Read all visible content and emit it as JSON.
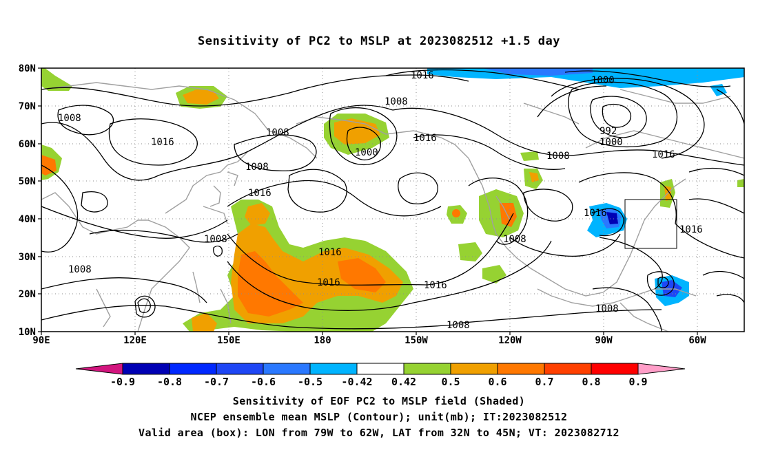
{
  "title": "Sensitivity of PC2 to MSLP at 2023082512 +1.5 day",
  "axes": {
    "lat_labels": [
      "80N",
      "70N",
      "60N",
      "50N",
      "40N",
      "30N",
      "20N",
      "10N"
    ],
    "lon_labels": [
      "90E",
      "120E",
      "150E",
      "180",
      "150W",
      "120W",
      "90W",
      "60W"
    ]
  },
  "contour_labels": {
    "c1": "1016",
    "c2": "1000",
    "c3": "1008",
    "c4": "1008",
    "c5": "1016",
    "c6": "1008",
    "c7": "1008",
    "c8": "1000",
    "c9": "1016",
    "c10": "992",
    "c11": "1000",
    "c12": "1008",
    "c13": "1016",
    "c14": "1016",
    "c15": "1016",
    "c16": "1008",
    "c17": "1016",
    "c18": "1008",
    "c19": "1016",
    "c20": "1016",
    "c21": "1008",
    "c22": "1008",
    "c23": "1016",
    "c24": "1008"
  },
  "colorbar": {
    "labels": [
      "-0.9",
      "-0.8",
      "-0.7",
      "-0.6",
      "-0.5",
      "-0.42",
      "0.42",
      "0.5",
      "0.6",
      "0.7",
      "0.8",
      "0.9"
    ],
    "colors": [
      "#0000b4",
      "#0028ff",
      "#1e46f5",
      "#2a78ff",
      "#00b4ff",
      "#ffffff",
      "#96d232",
      "#f0a000",
      "#ff7800",
      "#ff4000",
      "#ff0000"
    ],
    "below_color": "#d2157e",
    "above_color": "#ff9ec8"
  },
  "captions": [
    "Sensitivity of EOF PC2 to MSLP field (Shaded)",
    "NCEP ensemble mean MSLP (Contour); unit(mb); IT:2023082512",
    "Valid area (box): LON from 79W to 62W, LAT from 32N to 45N; VT: 2023082712"
  ]
}
